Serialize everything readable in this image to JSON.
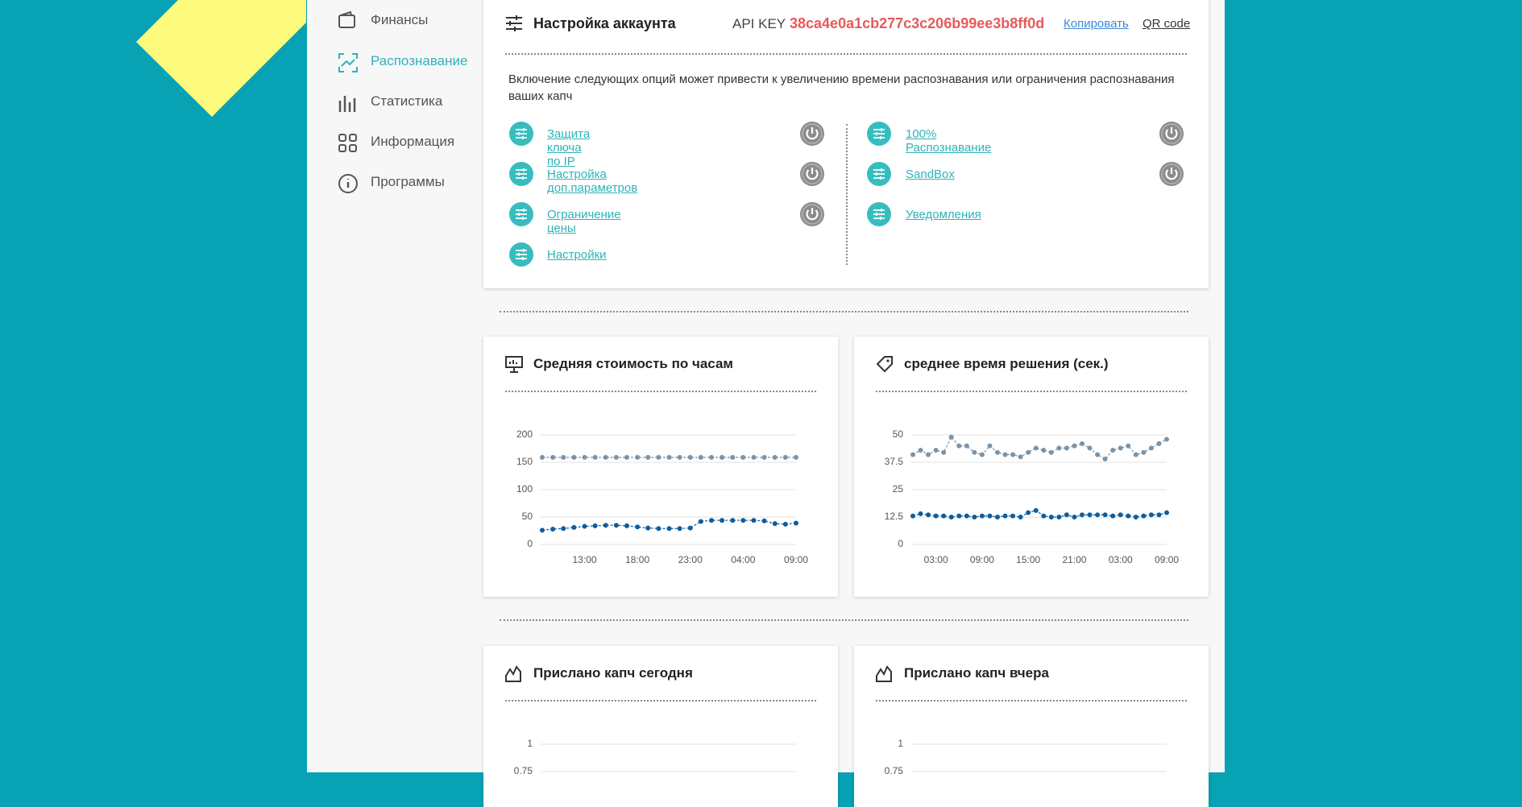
{
  "sidebar": {
    "items": [
      "Финансы",
      "Распознавание",
      "Статистика",
      "Информация",
      "Программы"
    ]
  },
  "account": {
    "title": "Настройка аккаунта",
    "api_key_label": "API KEY",
    "api_key": "38ca4e0a1cb277c3c206b99ee3b8ff0d",
    "copy": "Копировать",
    "qr": "QR code",
    "notice": "Включение следующих опций может привести к увеличению времени распознавания или ограничения распознавания ваших капч",
    "options_left": [
      "Защита ключа по IP",
      "Настройка доп.параметров",
      "Ограничение цены",
      "Настройки"
    ],
    "options_right": [
      "100% Распознавание",
      "SandBox",
      "Уведомления"
    ]
  },
  "chart_data": [
    {
      "type": "line",
      "title": "Средняя стоимость по часам",
      "categories": [
        null,
        null,
        null,
        null,
        "13:00",
        null,
        null,
        null,
        null,
        "18:00",
        null,
        null,
        null,
        null,
        "23:00",
        null,
        null,
        null,
        null,
        "04:00",
        null,
        null,
        null,
        null,
        "09:00"
      ],
      "series": [
        {
          "color": "#7a93a8",
          "values": [
            159,
            159,
            159,
            159,
            159,
            159,
            159,
            159,
            159,
            159,
            159,
            159,
            159,
            159,
            159,
            159,
            159,
            159,
            159,
            159,
            159,
            159,
            159,
            159,
            159
          ]
        },
        {
          "color": "#0f5c9e",
          "values": [
            26,
            28,
            29,
            31,
            33,
            34,
            35,
            35,
            34,
            32,
            30,
            29,
            29,
            29,
            30,
            42,
            44,
            44,
            44,
            44,
            44,
            43,
            38,
            37,
            39
          ]
        }
      ],
      "ylim": [
        0,
        200
      ],
      "yticks": [
        0,
        50,
        100,
        150,
        200
      ],
      "grid": true
    },
    {
      "type": "line",
      "title": "среднее время решения (сек.)",
      "categories": [
        null,
        null,
        null,
        "03:00",
        null,
        null,
        null,
        null,
        null,
        "09:00",
        null,
        null,
        null,
        null,
        null,
        "15:00",
        null,
        null,
        null,
        null,
        null,
        "21:00",
        null,
        null,
        null,
        null,
        null,
        "03:00",
        null,
        null,
        null,
        null,
        null,
        "09:00"
      ],
      "series": [
        {
          "color": "#7a93a8",
          "values": [
            41,
            43,
            41,
            43,
            42,
            49,
            45,
            45,
            42,
            41,
            45,
            42,
            41,
            41,
            40,
            42,
            44,
            43,
            42,
            44,
            44,
            45,
            46,
            44,
            41,
            39,
            43,
            44,
            45,
            41,
            42,
            44,
            46,
            48
          ]
        },
        {
          "color": "#0f5c9e",
          "values": [
            13,
            14,
            13.5,
            13,
            13,
            12.5,
            13,
            13,
            12.5,
            13,
            13,
            12.5,
            13,
            13,
            12.5,
            14.5,
            15.5,
            13,
            12.5,
            12.5,
            13.5,
            12.5,
            13.5,
            13.5,
            13.5,
            13.5,
            13,
            13.5,
            13,
            12.5,
            13,
            13.5,
            13.5,
            14.5
          ]
        }
      ],
      "ylim": [
        0,
        50
      ],
      "yticks": [
        0,
        12.5,
        25,
        37.5,
        50
      ],
      "grid": true
    },
    {
      "type": "line",
      "title": "Прислано капч сегодня",
      "ylim": [
        0,
        1
      ],
      "yticks": [
        0.75,
        1
      ],
      "grid": true
    },
    {
      "type": "line",
      "title": "Прислано капч вчера",
      "ylim": [
        0,
        1
      ],
      "yticks": [
        0.75,
        1
      ],
      "grid": true
    }
  ]
}
